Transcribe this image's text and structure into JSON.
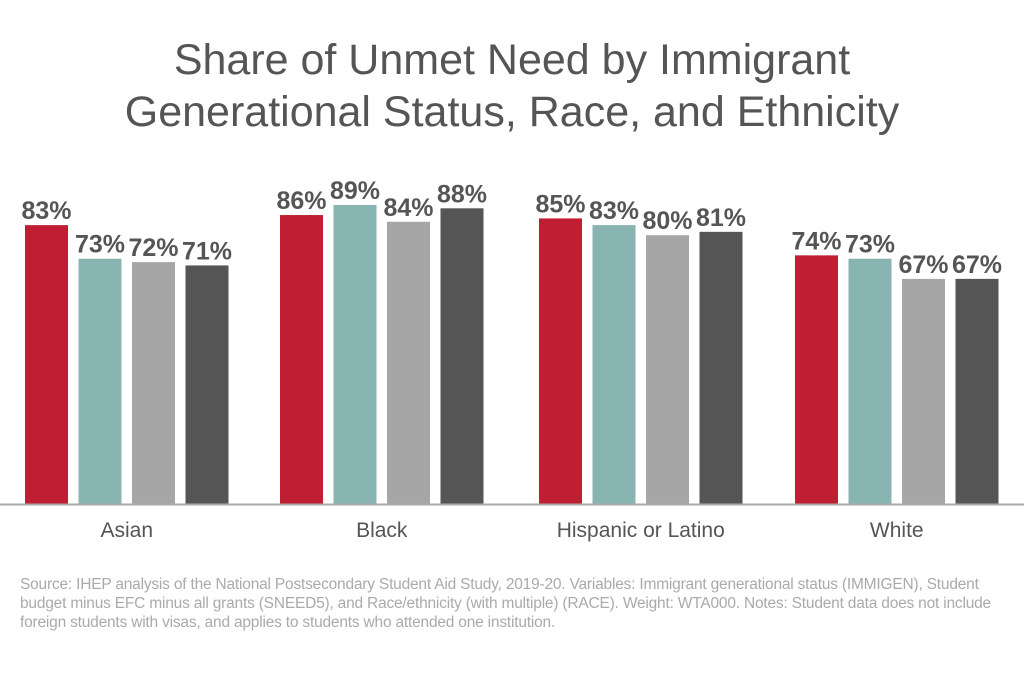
{
  "chart_data": {
    "type": "bar",
    "title": "Share of Unmet Need by Immigrant Generational Status, Race, and Ethnicity",
    "categories": [
      "Asian",
      "Black",
      "Hispanic or Latino",
      "White"
    ],
    "series": [
      {
        "values": [
          83,
          86,
          85,
          74
        ],
        "color": "#c01f33"
      },
      {
        "values": [
          73,
          89,
          83,
          73
        ],
        "color": "#88b4b1"
      },
      {
        "values": [
          72,
          84,
          80,
          67
        ],
        "color": "#a6a6a6"
      },
      {
        "values": [
          71,
          88,
          81,
          67
        ],
        "color": "#555555"
      }
    ],
    "value_format": "percent",
    "ylim": [
      0,
      100
    ],
    "grid": false,
    "legend": "none",
    "label_color": "#555555",
    "axis_color": "#aaaaaa"
  },
  "note": "Source: IHEP analysis of the National Postsecondary Student Aid Study, 2019-20. Variables: Immigrant generational status (IMMIGEN), Student budget minus EFC minus all grants (SNEED5), and Race/ethnicity (with multiple) (RACE). Weight: WTA000. Notes: Student data does not include foreign students with visas, and applies to students who attended one institution."
}
